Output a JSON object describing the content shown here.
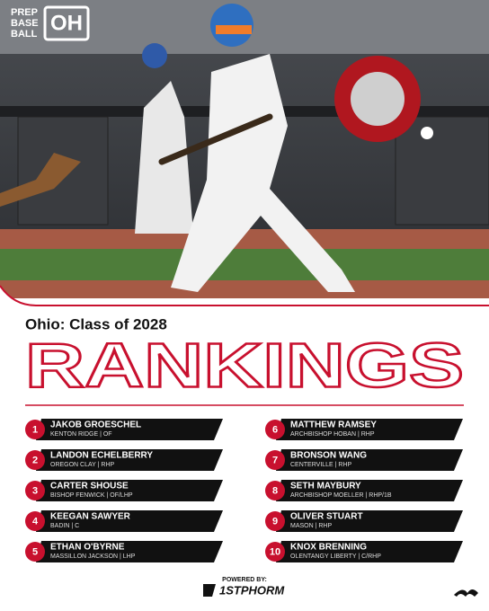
{
  "logo": {
    "text": "PREP BASE BALL",
    "badge": "OH"
  },
  "heading": {
    "subtitle": "Ohio: Class of 2028",
    "title": "RANKINGS"
  },
  "rankings": [
    {
      "rank": "1",
      "name": "JAKOB GROESCHEL",
      "detail": "KENTON RIDGE | OF"
    },
    {
      "rank": "2",
      "name": "LANDON ECHELBERRY",
      "detail": "OREGON CLAY | RHP"
    },
    {
      "rank": "3",
      "name": "CARTER SHOUSE",
      "detail": "BISHOP FENWICK | OF/LHP"
    },
    {
      "rank": "4",
      "name": "KEEGAN SAWYER",
      "detail": "BADIN | C"
    },
    {
      "rank": "5",
      "name": "ETHAN O'BYRNE",
      "detail": "MASSILLON JACKSON | LHP"
    },
    {
      "rank": "6",
      "name": "MATTHEW RAMSEY",
      "detail": "ARCHBISHOP HOBAN | RHP"
    },
    {
      "rank": "7",
      "name": "BRONSON WANG",
      "detail": "CENTERVILLE | RHP"
    },
    {
      "rank": "8",
      "name": "SETH MAYBURY",
      "detail": "ARCHBISHOP MOELLER | RHP/1B"
    },
    {
      "rank": "9",
      "name": "OLIVER STUART",
      "detail": "MASON | RHP"
    },
    {
      "rank": "10",
      "name": "KNOX BRENNING",
      "detail": "OLENTANGY LIBERTY | C/RHP"
    }
  ],
  "footer": {
    "powered": "POWERED BY:",
    "sponsor": "1STPHORM"
  }
}
